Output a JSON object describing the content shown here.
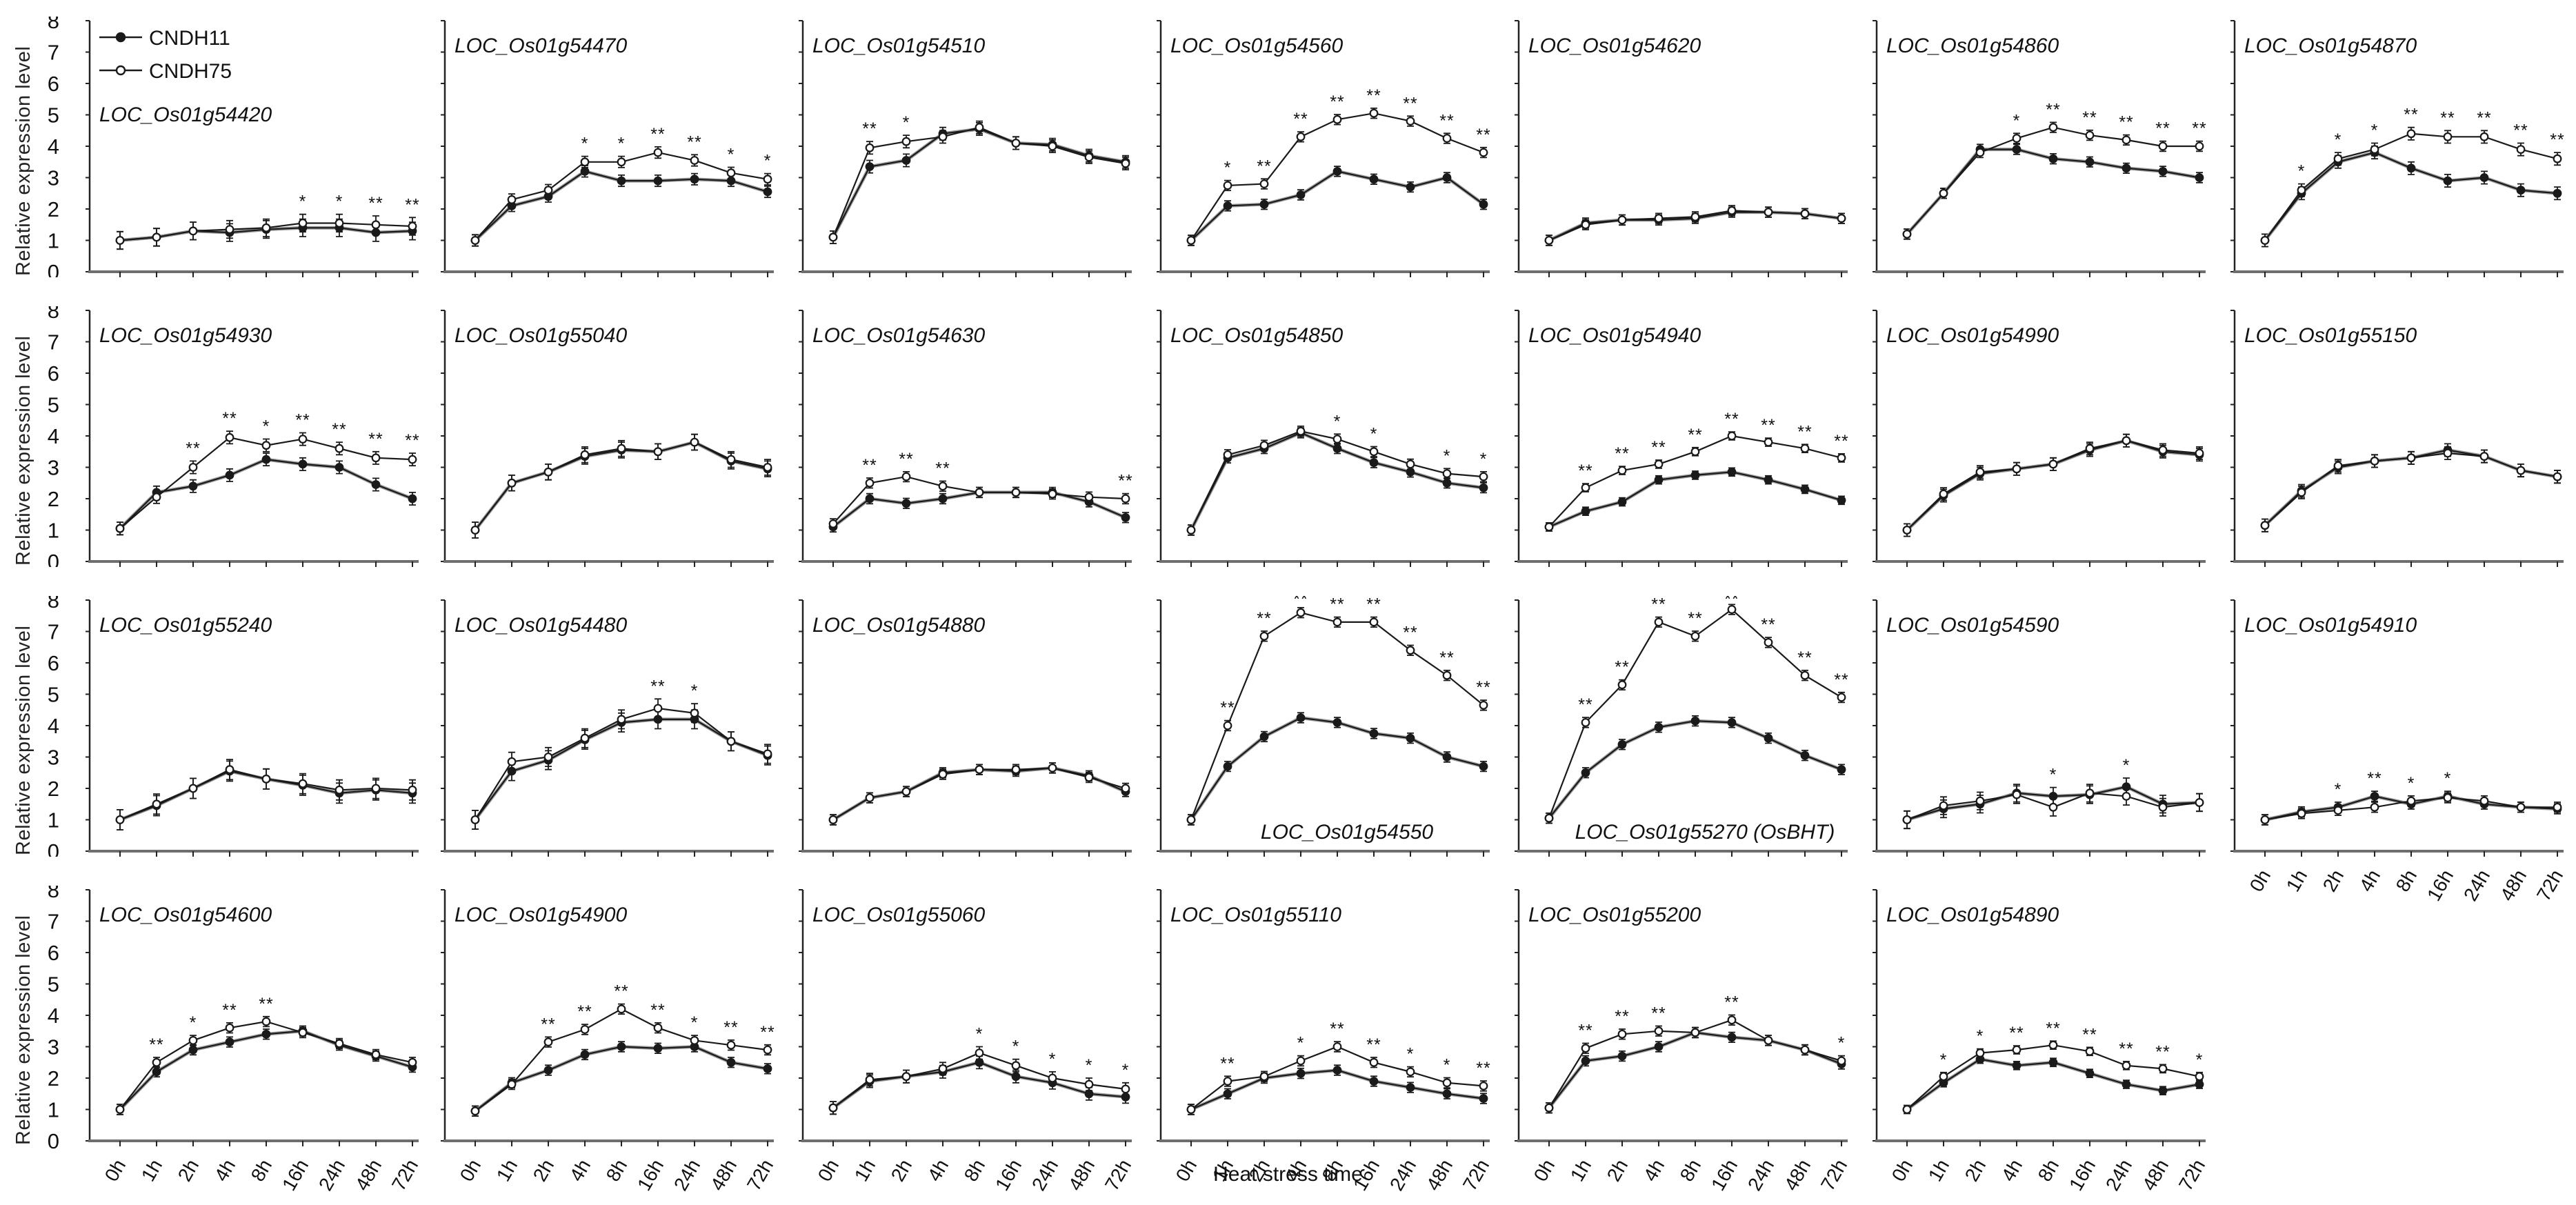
{
  "chart_data": {
    "type": "line",
    "title": "",
    "xlabel": "Heat stress time",
    "ylabel": "Relative expression level",
    "x": [
      "0h",
      "1h",
      "2h",
      "4h",
      "8h",
      "16h",
      "24h",
      "48h",
      "72h"
    ],
    "y_ticks": [
      0,
      1,
      2,
      3,
      4,
      5,
      6,
      7,
      8
    ],
    "ylim": [
      0,
      8
    ],
    "grid": false,
    "legend_position": "top-left-first-panel",
    "legend": [
      {
        "label": "CNDH11",
        "marker": "filled-circle"
      },
      {
        "label": "CNDH75",
        "marker": "open-circle"
      }
    ],
    "colors": {
      "ink": "#1a1a1a",
      "axis_gray": "#6e6e6e",
      "gray_underline": "#9a9a9a",
      "background": "#ffffff"
    },
    "significance_note": "* p<0.05, ** p<0.01 marks drawn above points",
    "panels": [
      {
        "gene": "LOC_Os01g54420",
        "row": 0,
        "col": 0,
        "err": 0.28,
        "legend": true,
        "label_pos": "mid",
        "series": {
          "CNDH11": [
            1.0,
            1.1,
            1.3,
            1.25,
            1.35,
            1.4,
            1.4,
            1.25,
            1.3
          ],
          "CNDH75": [
            1.0,
            1.1,
            1.3,
            1.35,
            1.4,
            1.55,
            1.55,
            1.5,
            1.45
          ]
        },
        "sig": [
          "",
          "",
          "",
          "",
          "",
          "*",
          "*",
          "**",
          "**"
        ]
      },
      {
        "gene": "LOC_Os01g54470",
        "row": 0,
        "col": 1,
        "err": 0.18,
        "label_pos": "top",
        "series": {
          "CNDH11": [
            1.0,
            2.1,
            2.4,
            3.2,
            2.9,
            2.9,
            2.95,
            2.9,
            2.55
          ],
          "CNDH75": [
            1.0,
            2.3,
            2.6,
            3.5,
            3.5,
            3.8,
            3.55,
            3.15,
            2.95
          ]
        },
        "sig": [
          "",
          "",
          "",
          "*",
          "*",
          "**",
          "**",
          "*",
          "*"
        ]
      },
      {
        "gene": "LOC_Os01g54510",
        "row": 0,
        "col": 2,
        "err": 0.2,
        "label_pos": "top",
        "series": {
          "CNDH11": [
            1.1,
            3.35,
            3.55,
            4.4,
            4.55,
            4.1,
            4.05,
            3.7,
            3.5
          ],
          "CNDH75": [
            1.1,
            3.95,
            4.15,
            4.3,
            4.6,
            4.1,
            4.0,
            3.65,
            3.45
          ]
        },
        "sig": [
          "",
          "**",
          "*",
          "",
          "",
          "",
          "",
          "",
          ""
        ]
      },
      {
        "gene": "LOC_Os01g54560",
        "row": 0,
        "col": 3,
        "err": 0.16,
        "label_pos": "top",
        "series": {
          "CNDH11": [
            1.0,
            2.1,
            2.15,
            2.45,
            3.2,
            2.95,
            2.7,
            3.0,
            2.15
          ],
          "CNDH75": [
            1.0,
            2.75,
            2.8,
            4.3,
            4.85,
            5.05,
            4.8,
            4.25,
            3.8
          ]
        },
        "sig": [
          "",
          "*",
          "**",
          "**",
          "**",
          "**",
          "**",
          "**",
          "**"
        ]
      },
      {
        "gene": "LOC_Os01g54620",
        "row": 0,
        "col": 4,
        "err": 0.16,
        "label_pos": "top",
        "series": {
          "CNDH11": [
            1.0,
            1.55,
            1.65,
            1.65,
            1.7,
            1.9,
            1.9,
            1.85,
            1.7
          ],
          "CNDH75": [
            1.0,
            1.5,
            1.65,
            1.7,
            1.75,
            1.95,
            1.9,
            1.85,
            1.7
          ]
        },
        "sig": [
          "",
          "",
          "",
          "",
          "",
          "",
          "",
          "",
          ""
        ]
      },
      {
        "gene": "LOC_Os01g54860",
        "row": 0,
        "col": 5,
        "err": 0.16,
        "label_pos": "top",
        "series": {
          "CNDH11": [
            1.2,
            2.5,
            3.9,
            3.9,
            3.6,
            3.5,
            3.3,
            3.2,
            3.0
          ],
          "CNDH75": [
            1.2,
            2.5,
            3.8,
            4.25,
            4.6,
            4.35,
            4.2,
            4.0,
            4.0
          ]
        },
        "sig": [
          "",
          "",
          "",
          "*",
          "**",
          "**",
          "**",
          "**",
          "**"
        ]
      },
      {
        "gene": "LOC_Os01g54870",
        "row": 0,
        "col": 6,
        "err": 0.2,
        "label_pos": "top",
        "series": {
          "CNDH11": [
            1.0,
            2.5,
            3.5,
            3.8,
            3.3,
            2.9,
            3.0,
            2.6,
            2.5
          ],
          "CNDH75": [
            1.0,
            2.6,
            3.6,
            3.9,
            4.4,
            4.3,
            4.3,
            3.9,
            3.6
          ]
        },
        "sig": [
          "",
          "*",
          "*",
          "*",
          "**",
          "**",
          "**",
          "**",
          "**"
        ]
      },
      {
        "gene": "LOC_Os01g54930",
        "row": 1,
        "col": 0,
        "err": 0.2,
        "label_pos": "top",
        "series": {
          "CNDH11": [
            1.05,
            2.2,
            2.4,
            2.75,
            3.25,
            3.1,
            3.0,
            2.45,
            2.0
          ],
          "CNDH75": [
            1.05,
            2.05,
            3.0,
            3.95,
            3.7,
            3.9,
            3.6,
            3.3,
            3.25
          ]
        },
        "sig": [
          "",
          "",
          "**",
          "**",
          "*",
          "**",
          "**",
          "**",
          "**"
        ]
      },
      {
        "gene": "LOC_Os01g55040",
        "row": 1,
        "col": 1,
        "err": 0.25,
        "label_pos": "top",
        "series": {
          "CNDH11": [
            1.0,
            2.5,
            2.85,
            3.35,
            3.55,
            3.5,
            3.8,
            3.2,
            2.95
          ],
          "CNDH75": [
            1.0,
            2.5,
            2.85,
            3.4,
            3.6,
            3.5,
            3.8,
            3.25,
            3.0
          ]
        },
        "sig": [
          "",
          "",
          "",
          "",
          "",
          "",
          "",
          "",
          ""
        ]
      },
      {
        "gene": "LOC_Os01g54630",
        "row": 1,
        "col": 2,
        "err": 0.16,
        "label_pos": "top",
        "series": {
          "CNDH11": [
            1.1,
            2.0,
            1.85,
            2.0,
            2.2,
            2.2,
            2.2,
            1.9,
            1.4
          ],
          "CNDH75": [
            1.2,
            2.5,
            2.7,
            2.4,
            2.2,
            2.2,
            2.15,
            2.05,
            2.0
          ]
        },
        "sig": [
          "",
          "**",
          "**",
          "**",
          "",
          "",
          "",
          "",
          "**"
        ]
      },
      {
        "gene": "LOC_Os01g54850",
        "row": 1,
        "col": 3,
        "err": 0.16,
        "label_pos": "top",
        "series": {
          "CNDH11": [
            1.0,
            3.3,
            3.6,
            4.1,
            3.6,
            3.15,
            2.85,
            2.5,
            2.35
          ],
          "CNDH75": [
            1.0,
            3.4,
            3.7,
            4.15,
            3.9,
            3.5,
            3.1,
            2.8,
            2.7
          ]
        },
        "sig": [
          "",
          "",
          "",
          "",
          "*",
          "*",
          "",
          "*",
          "*"
        ]
      },
      {
        "gene": "LOC_Os01g54940",
        "row": 1,
        "col": 4,
        "err": 0.13,
        "label_pos": "top",
        "series": {
          "CNDH11": [
            1.1,
            1.6,
            1.9,
            2.6,
            2.75,
            2.85,
            2.6,
            2.3,
            1.95
          ],
          "CNDH75": [
            1.1,
            2.35,
            2.9,
            3.1,
            3.5,
            4.0,
            3.8,
            3.6,
            3.3
          ]
        },
        "sig": [
          "",
          "**",
          "**",
          "**",
          "**",
          "**",
          "**",
          "**",
          "**"
        ]
      },
      {
        "gene": "LOC_Os01g54990",
        "row": 1,
        "col": 5,
        "err": 0.2,
        "label_pos": "top",
        "series": {
          "CNDH11": [
            1.0,
            2.1,
            2.8,
            2.95,
            3.1,
            3.55,
            3.85,
            3.5,
            3.4
          ],
          "CNDH75": [
            1.0,
            2.15,
            2.85,
            2.95,
            3.1,
            3.6,
            3.85,
            3.55,
            3.45
          ]
        },
        "sig": [
          "",
          "",
          "",
          "",
          "",
          "",
          "",
          "",
          ""
        ]
      },
      {
        "gene": "LOC_Os01g55150",
        "row": 1,
        "col": 6,
        "err": 0.2,
        "label_pos": "top",
        "series": {
          "CNDH11": [
            1.15,
            2.25,
            3.0,
            3.2,
            3.3,
            3.55,
            3.35,
            2.9,
            2.7
          ],
          "CNDH75": [
            1.15,
            2.2,
            3.05,
            3.2,
            3.3,
            3.45,
            3.35,
            2.9,
            2.7
          ]
        },
        "sig": [
          "",
          "",
          "",
          "",
          "",
          "",
          "",
          "",
          ""
        ]
      },
      {
        "gene": "LOC_Os01g55240",
        "row": 2,
        "col": 0,
        "err": 0.32,
        "label_pos": "top",
        "series": {
          "CNDH11": [
            1.0,
            1.45,
            2.0,
            2.55,
            2.3,
            2.1,
            1.85,
            1.95,
            1.85
          ],
          "CNDH75": [
            1.0,
            1.5,
            2.0,
            2.6,
            2.3,
            2.15,
            1.95,
            2.0,
            1.95
          ]
        },
        "sig": [
          "",
          "",
          "",
          "",
          "",
          "",
          "",
          "",
          ""
        ]
      },
      {
        "gene": "LOC_Os01g54480",
        "row": 2,
        "col": 1,
        "err": 0.3,
        "label_pos": "top",
        "series": {
          "CNDH11": [
            1.0,
            2.55,
            2.9,
            3.55,
            4.1,
            4.2,
            4.2,
            3.5,
            3.05
          ],
          "CNDH75": [
            1.0,
            2.85,
            3.0,
            3.6,
            4.2,
            4.55,
            4.4,
            3.5,
            3.1
          ]
        },
        "sig": [
          "",
          "",
          "",
          "",
          "",
          "**",
          "*",
          "",
          ""
        ]
      },
      {
        "gene": "LOC_Os01g54880",
        "row": 2,
        "col": 2,
        "err": 0.16,
        "label_pos": "top",
        "series": {
          "CNDH11": [
            1.0,
            1.7,
            1.9,
            2.5,
            2.6,
            2.55,
            2.65,
            2.4,
            1.9
          ],
          "CNDH75": [
            1.0,
            1.7,
            1.9,
            2.45,
            2.6,
            2.6,
            2.65,
            2.35,
            2.0
          ]
        },
        "sig": [
          "",
          "",
          "",
          "",
          "",
          "",
          "",
          "",
          ""
        ]
      },
      {
        "gene": "LOC_Os01g54550",
        "row": 2,
        "col": 3,
        "err": 0.16,
        "label_pos": "bottom",
        "series": {
          "CNDH11": [
            1.0,
            2.7,
            3.65,
            4.25,
            4.1,
            3.75,
            3.6,
            3.0,
            2.7
          ],
          "CNDH75": [
            1.0,
            4.0,
            6.85,
            7.6,
            7.3,
            7.3,
            6.4,
            5.6,
            4.65
          ]
        },
        "sig": [
          "",
          "**",
          "**",
          "**",
          "**",
          "**",
          "**",
          "**",
          "**"
        ]
      },
      {
        "gene": "LOC_Os01g55270 (OsBHT)",
        "row": 2,
        "col": 4,
        "err": 0.16,
        "label_pos": "bottom",
        "series": {
          "CNDH11": [
            1.05,
            2.5,
            3.4,
            3.95,
            4.15,
            4.1,
            3.6,
            3.05,
            2.6
          ],
          "CNDH75": [
            1.05,
            4.1,
            5.3,
            7.3,
            6.85,
            7.7,
            6.65,
            5.6,
            4.9
          ]
        },
        "sig": [
          "",
          "**",
          "**",
          "**",
          "**",
          "**",
          "**",
          "**",
          "**"
        ]
      },
      {
        "gene": "LOC_Os01g54590",
        "row": 2,
        "col": 5,
        "err": 0.28,
        "label_pos": "top",
        "series": {
          "CNDH11": [
            1.0,
            1.35,
            1.5,
            1.85,
            1.75,
            1.8,
            2.05,
            1.5,
            1.55
          ],
          "CNDH75": [
            1.0,
            1.45,
            1.6,
            1.8,
            1.4,
            1.85,
            1.75,
            1.4,
            1.55
          ]
        },
        "sig": [
          "",
          "",
          "",
          "",
          "*",
          "",
          "*",
          "",
          ""
        ]
      },
      {
        "gene": "LOC_Os01g54910",
        "row": 2,
        "col": 6,
        "err": 0.16,
        "label_pos": "top",
        "series": {
          "CNDH11": [
            1.0,
            1.25,
            1.4,
            1.75,
            1.5,
            1.75,
            1.5,
            1.4,
            1.35
          ],
          "CNDH75": [
            1.0,
            1.2,
            1.3,
            1.4,
            1.6,
            1.7,
            1.6,
            1.4,
            1.4
          ]
        },
        "sig": [
          "",
          "",
          "*",
          "**",
          "*",
          "*",
          "",
          "",
          ""
        ]
      },
      {
        "gene": "LOC_Os01g54600",
        "row": 3,
        "col": 0,
        "err": 0.16,
        "label_pos": "top",
        "series": {
          "CNDH11": [
            1.0,
            2.2,
            2.9,
            3.15,
            3.4,
            3.5,
            3.05,
            2.7,
            2.35
          ],
          "CNDH75": [
            1.0,
            2.5,
            3.2,
            3.6,
            3.8,
            3.45,
            3.1,
            2.75,
            2.5
          ]
        },
        "sig": [
          "",
          "**",
          "*",
          "**",
          "**",
          "",
          "",
          "",
          ""
        ]
      },
      {
        "gene": "LOC_Os01g54900",
        "row": 3,
        "col": 1,
        "err": 0.16,
        "label_pos": "top",
        "series": {
          "CNDH11": [
            0.95,
            1.85,
            2.25,
            2.75,
            3.0,
            2.95,
            3.0,
            2.5,
            2.3
          ],
          "CNDH75": [
            0.95,
            1.8,
            3.15,
            3.55,
            4.2,
            3.6,
            3.2,
            3.05,
            2.9
          ]
        },
        "sig": [
          "",
          "",
          "**",
          "**",
          "**",
          "**",
          "*",
          "**",
          "**"
        ]
      },
      {
        "gene": "LOC_Os01g55060",
        "row": 3,
        "col": 2,
        "err": 0.2,
        "label_pos": "top",
        "series": {
          "CNDH11": [
            1.05,
            1.9,
            2.05,
            2.2,
            2.5,
            2.05,
            1.85,
            1.5,
            1.4
          ],
          "CNDH75": [
            1.05,
            1.95,
            2.05,
            2.3,
            2.8,
            2.4,
            2.0,
            1.8,
            1.65
          ]
        },
        "sig": [
          "",
          "",
          "",
          "",
          "*",
          "*",
          "*",
          "*",
          "*"
        ]
      },
      {
        "gene": "LOC_Os01g55110",
        "row": 3,
        "col": 3,
        "err": 0.16,
        "label_pos": "top",
        "series": {
          "CNDH11": [
            1.0,
            1.5,
            2.0,
            2.15,
            2.25,
            1.9,
            1.7,
            1.5,
            1.35
          ],
          "CNDH75": [
            1.0,
            1.9,
            2.05,
            2.55,
            3.0,
            2.5,
            2.2,
            1.85,
            1.75
          ]
        },
        "sig": [
          "",
          "**",
          "",
          "*",
          "**",
          "**",
          "*",
          "*",
          "**"
        ]
      },
      {
        "gene": "LOC_Os01g55200",
        "row": 3,
        "col": 4,
        "err": 0.16,
        "label_pos": "top",
        "series": {
          "CNDH11": [
            1.05,
            2.55,
            2.7,
            3.0,
            3.45,
            3.3,
            3.2,
            2.9,
            2.45
          ],
          "CNDH75": [
            1.05,
            2.95,
            3.4,
            3.5,
            3.45,
            3.85,
            3.2,
            2.9,
            2.55
          ]
        },
        "sig": [
          "",
          "**",
          "**",
          "**",
          "",
          "**",
          "",
          "",
          "*"
        ]
      },
      {
        "gene": "LOC_Os01g54890",
        "row": 3,
        "col": 5,
        "err": 0.13,
        "label_pos": "top",
        "series": {
          "CNDH11": [
            1.0,
            1.85,
            2.6,
            2.4,
            2.5,
            2.15,
            1.8,
            1.6,
            1.8
          ],
          "CNDH75": [
            1.0,
            2.05,
            2.8,
            2.9,
            3.05,
            2.85,
            2.4,
            2.3,
            2.05
          ]
        },
        "sig": [
          "",
          "*",
          "*",
          "**",
          "**",
          "**",
          "**",
          "**",
          "*"
        ]
      }
    ]
  }
}
